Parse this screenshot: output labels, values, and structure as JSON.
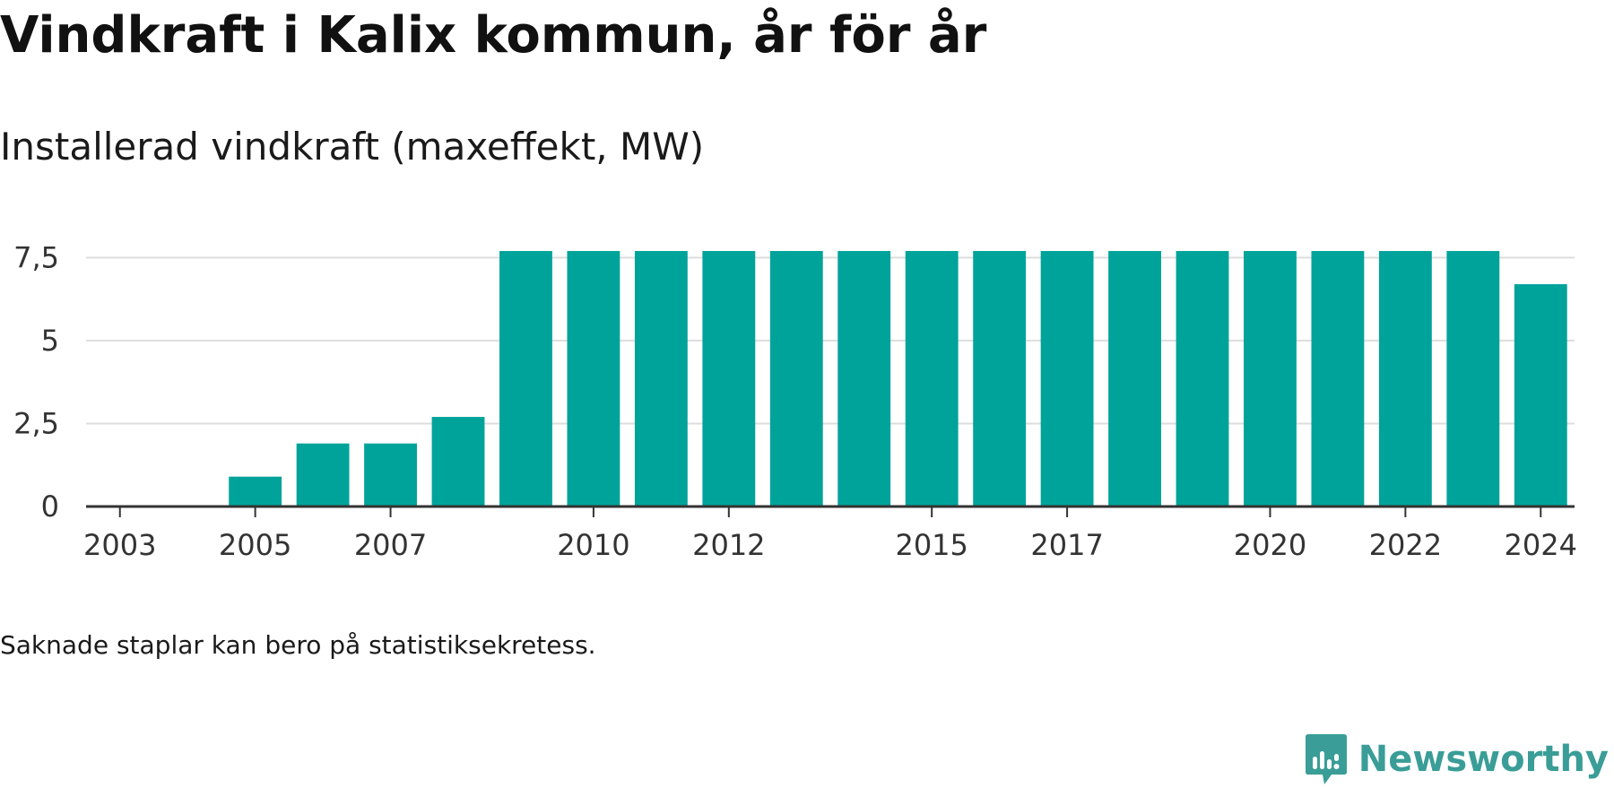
{
  "title": "Vindkraft i Kalix kommun, år för år",
  "subtitle": "Installerad vindkraft (maxeffekt, MW)",
  "note": "Saknade staplar kan bero på statistiksekretess.",
  "brand": {
    "name": "Newsworthy",
    "color": "#3a9d97",
    "icon": "newsworthy-logo-icon"
  },
  "colors": {
    "bar": "#00a39a",
    "grid": "#dddddd",
    "axis": "#333333"
  },
  "chart_data": {
    "type": "bar",
    "categories": [
      2003,
      2004,
      2005,
      2006,
      2007,
      2008,
      2009,
      2010,
      2011,
      2012,
      2013,
      2014,
      2015,
      2016,
      2017,
      2018,
      2019,
      2020,
      2021,
      2022,
      2023,
      2024
    ],
    "values": [
      0,
      0,
      0.9,
      1.9,
      1.9,
      2.7,
      7.7,
      7.7,
      7.7,
      7.7,
      7.7,
      7.7,
      7.7,
      7.7,
      7.7,
      7.7,
      7.7,
      7.7,
      7.7,
      7.7,
      7.7,
      6.7
    ],
    "x_tick_labels": [
      "2003",
      "2005",
      "2007",
      "2010",
      "2012",
      "2015",
      "2017",
      "2020",
      "2022",
      "2024"
    ],
    "y_ticks": [
      0,
      2.5,
      5,
      7.5
    ],
    "y_tick_labels": [
      "0",
      "2,5",
      "5",
      "7,5"
    ],
    "ylim": [
      0,
      7.7
    ],
    "grid": true,
    "legend": false
  }
}
